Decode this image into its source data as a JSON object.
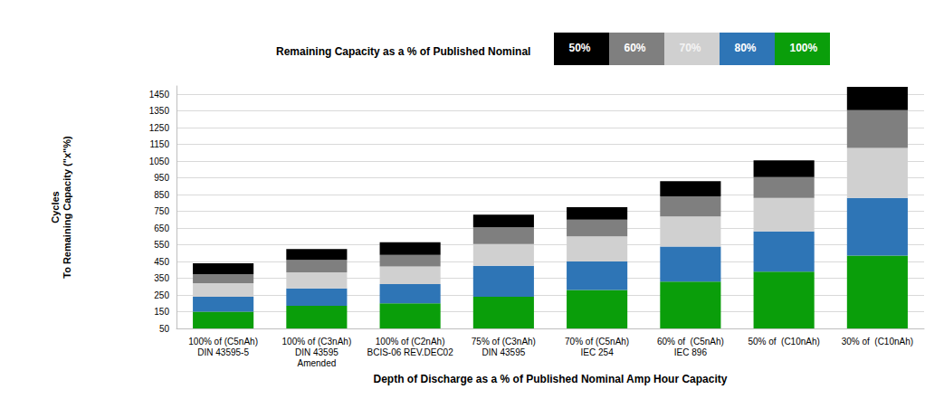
{
  "chart_data": {
    "type": "bar",
    "stacked": true,
    "title": "Remaining Capacity as a % of Published Nominal",
    "x_label": "Depth of Discharge as a % of Published Nominal Amp Hour Capacity",
    "y_label": "Cycles\nTo Remaining Capacity (\"x\"%)",
    "categories": [
      "100% of (C5nAh)\nDIN 43595-5",
      "100% of (C3nAh)\nDIN 43595\nAmended",
      "100% of (C2nAh)\nBCIS-06 REV.DEC02",
      "75% of (C3nAh)\nDIN 43595",
      "70% of (C5nAh)\nIEC 254",
      "60% of  (C5nAh)\nIEC 896",
      "50% of  (C10nAh)",
      "30% of  (C10nAh)"
    ],
    "series": [
      {
        "name": "100%",
        "color": "#0a9e0a",
        "values": [
          150,
          185,
          200,
          240,
          280,
          330,
          390,
          485
        ]
      },
      {
        "name": "80%",
        "color": "#2e75b6",
        "values": [
          90,
          105,
          115,
          185,
          170,
          210,
          240,
          345
        ]
      },
      {
        "name": "70%",
        "color": "#d0d0d0",
        "values": [
          80,
          95,
          105,
          130,
          150,
          180,
          200,
          300
        ]
      },
      {
        "name": "60%",
        "color": "#7f7f7f",
        "values": [
          55,
          75,
          70,
          100,
          100,
          120,
          125,
          225
        ]
      },
      {
        "name": "50%",
        "color": "#000000",
        "values": [
          65,
          65,
          75,
          75,
          75,
          90,
          100,
          140
        ]
      }
    ],
    "ylim": [
      50,
      1500
    ],
    "yticks": [
      50,
      150,
      250,
      350,
      450,
      550,
      650,
      750,
      850,
      950,
      1050,
      1150,
      1250,
      1350,
      1450
    ],
    "grid": true,
    "legend": "top"
  }
}
